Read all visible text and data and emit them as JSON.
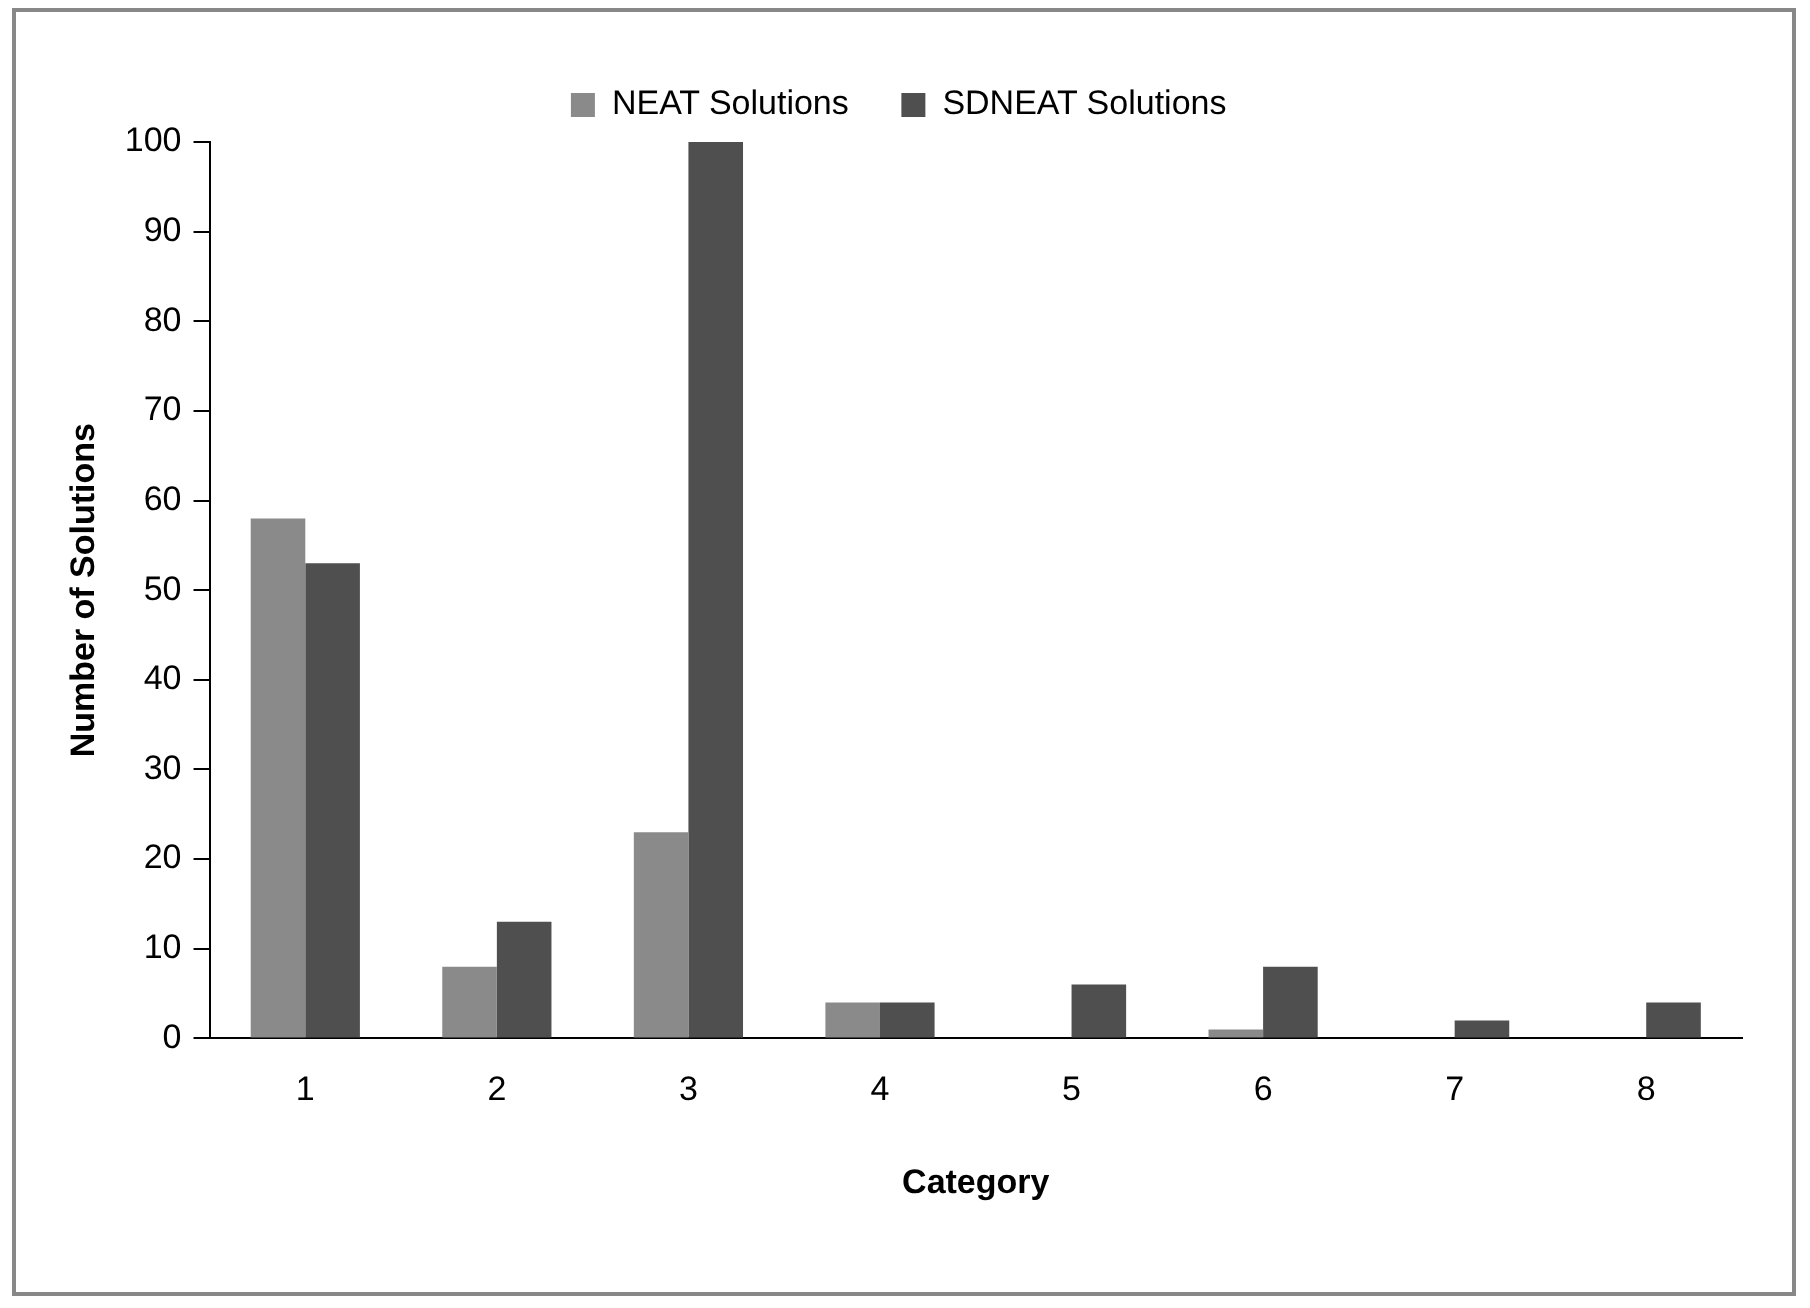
{
  "chart_data": {
    "type": "bar",
    "xlabel": "Category",
    "ylabel": "Number of Solutions",
    "categories": [
      "1",
      "2",
      "3",
      "4",
      "5",
      "6",
      "7",
      "8"
    ],
    "series": [
      {
        "name": "NEAT Solutions",
        "color": "#8a8a8a",
        "values": [
          58,
          8,
          23,
          4,
          0,
          1,
          0,
          0
        ]
      },
      {
        "name": "SDNEAT Solutions",
        "color": "#4f4f4f",
        "values": [
          53,
          13,
          100,
          4,
          6,
          8,
          2,
          4
        ]
      }
    ],
    "ylim": [
      0,
      100
    ],
    "yticks": [
      0,
      10,
      20,
      30,
      40,
      50,
      60,
      70,
      80,
      90,
      100
    ],
    "grid": false,
    "legend": "top"
  }
}
